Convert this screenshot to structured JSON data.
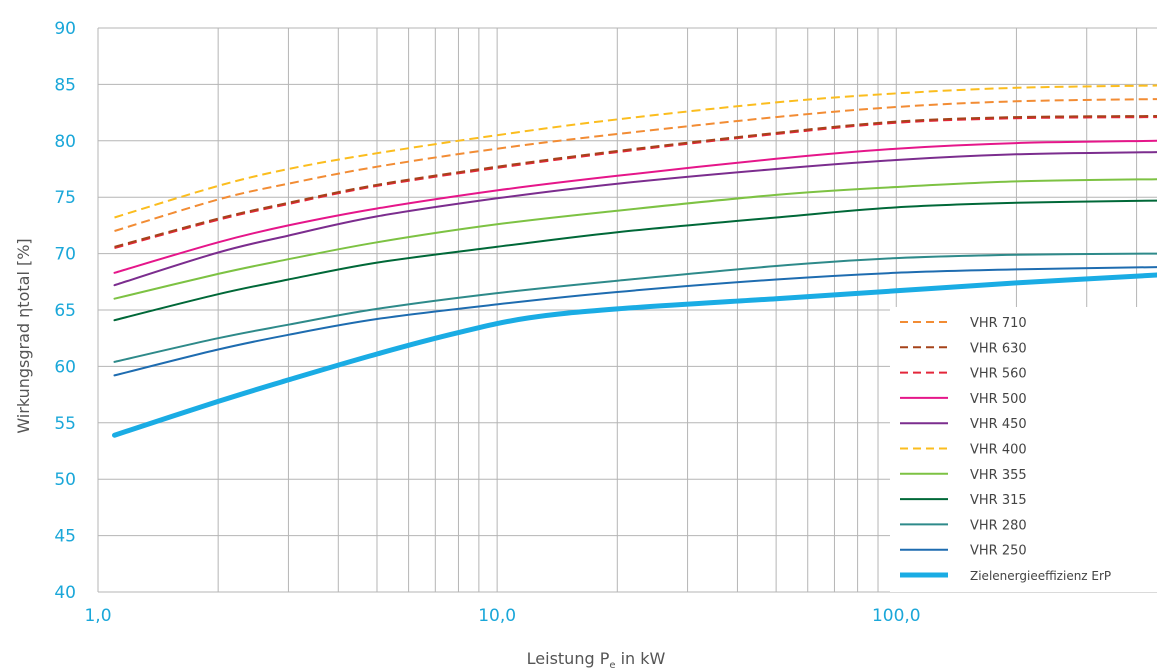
{
  "chart_data": {
    "type": "line",
    "xlabel": "Leistung P",
    "xlabel_sub": "e",
    "xlabel_suffix": " in kW",
    "ylabel": "Wirkungsgrad ηtotal [%]",
    "x_scale": "log",
    "xlim": [
      1.0,
      450
    ],
    "ylim": [
      40,
      90
    ],
    "x_ticks": [
      1,
      10,
      100
    ],
    "x_tick_labels": [
      "1,0",
      "10,0",
      "100,0"
    ],
    "y_ticks": [
      40,
      45,
      50,
      55,
      60,
      65,
      70,
      75,
      80,
      85,
      90
    ],
    "grid": true,
    "legend_position": "bottom-right",
    "series": [
      {
        "name": "VHR 710",
        "color": "#f28c34",
        "dash": "dashed",
        "width": 2,
        "x": [
          1.1,
          2,
          3,
          5,
          10,
          20,
          50,
          100,
          200,
          450
        ],
        "y": [
          72.0,
          74.8,
          76.2,
          77.7,
          79.3,
          80.6,
          82.1,
          83.0,
          83.5,
          83.7
        ]
      },
      {
        "name": "VHR 630",
        "color": "#a5431a",
        "dash": "dashed",
        "width": 2,
        "x": [
          1.1,
          2,
          3,
          5,
          10,
          20,
          50,
          100,
          200,
          450
        ],
        "y": [
          70.6,
          73.1,
          74.5,
          76.1,
          77.7,
          79.1,
          80.7,
          81.7,
          82.1,
          82.2
        ]
      },
      {
        "name": "VHR 560",
        "color": "#e3263a",
        "dash": "dashed",
        "width": 2,
        "x": [
          1.1,
          2,
          3,
          5,
          10,
          20,
          50,
          100,
          200,
          450
        ],
        "y": [
          70.5,
          73.0,
          74.4,
          76.0,
          77.6,
          79.0,
          80.6,
          81.6,
          82.0,
          82.1
        ]
      },
      {
        "name": "VHR 500",
        "color": "#e5168a",
        "dash": "solid",
        "width": 2,
        "x": [
          1.1,
          2,
          3,
          5,
          10,
          20,
          50,
          100,
          200,
          450
        ],
        "y": [
          68.3,
          71.0,
          72.5,
          74.0,
          75.6,
          76.9,
          78.4,
          79.3,
          79.8,
          80.0
        ]
      },
      {
        "name": "VHR 450",
        "color": "#7b2d8e",
        "dash": "solid",
        "width": 2,
        "x": [
          1.1,
          2,
          3,
          5,
          10,
          20,
          50,
          100,
          200,
          450
        ],
        "y": [
          67.2,
          70.1,
          71.6,
          73.3,
          74.9,
          76.2,
          77.5,
          78.3,
          78.8,
          79.0
        ]
      },
      {
        "name": "VHR 400",
        "color": "#fbbd1e",
        "dash": "dashed",
        "width": 2,
        "x": [
          1.1,
          2,
          3,
          5,
          10,
          20,
          50,
          100,
          200,
          450
        ],
        "y": [
          73.2,
          76.0,
          77.5,
          78.9,
          80.5,
          81.9,
          83.4,
          84.2,
          84.7,
          84.9
        ]
      },
      {
        "name": "VHR 355",
        "color": "#7dc243",
        "dash": "solid",
        "width": 2,
        "x": [
          1.1,
          2,
          3,
          5,
          10,
          20,
          50,
          100,
          200,
          450
        ],
        "y": [
          66.0,
          68.2,
          69.5,
          71.0,
          72.6,
          73.8,
          75.2,
          75.9,
          76.4,
          76.6
        ]
      },
      {
        "name": "VHR 315",
        "color": "#006838",
        "dash": "solid",
        "width": 2,
        "x": [
          1.1,
          2,
          3,
          5,
          10,
          20,
          50,
          100,
          200,
          450
        ],
        "y": [
          64.1,
          66.4,
          67.7,
          69.2,
          70.6,
          71.9,
          73.2,
          74.1,
          74.5,
          74.7
        ]
      },
      {
        "name": "VHR 280",
        "color": "#2e8a8a",
        "dash": "solid",
        "width": 2,
        "x": [
          1.1,
          2,
          3,
          5,
          10,
          20,
          50,
          100,
          200,
          450
        ],
        "y": [
          60.4,
          62.5,
          63.7,
          65.1,
          66.5,
          67.6,
          68.9,
          69.6,
          69.9,
          70.0
        ]
      },
      {
        "name": "VHR 250",
        "color": "#1e6cb0",
        "dash": "solid",
        "width": 2,
        "x": [
          1.1,
          2,
          3,
          5,
          10,
          20,
          50,
          100,
          200,
          450
        ],
        "y": [
          59.2,
          61.5,
          62.8,
          64.2,
          65.5,
          66.6,
          67.7,
          68.3,
          68.6,
          68.8
        ]
      },
      {
        "name": "Zielenergieeffizienz ErP",
        "color": "#1aace4",
        "dash": "solid",
        "width": 5,
        "x": [
          1.1,
          2,
          3,
          5,
          8,
          12,
          20,
          50,
          100,
          200,
          450
        ],
        "y": [
          53.9,
          56.9,
          58.8,
          61.1,
          63.0,
          64.3,
          65.1,
          66.0,
          66.7,
          67.4,
          68.1
        ]
      }
    ]
  }
}
